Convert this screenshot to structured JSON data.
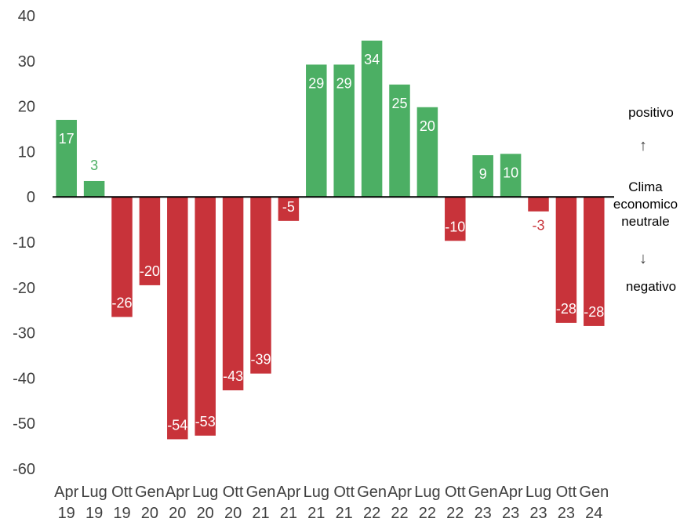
{
  "chart_data": {
    "type": "bar",
    "categories": [
      [
        "Apr",
        "19"
      ],
      [
        "Lug",
        "19"
      ],
      [
        "Ott",
        "19"
      ],
      [
        "Gen",
        "20"
      ],
      [
        "Apr",
        "20"
      ],
      [
        "Lug",
        "20"
      ],
      [
        "Ott",
        "20"
      ],
      [
        "Gen",
        "21"
      ],
      [
        "Apr",
        "21"
      ],
      [
        "Lug",
        "21"
      ],
      [
        "Ott",
        "21"
      ],
      [
        "Gen",
        "22"
      ],
      [
        "Apr",
        "22"
      ],
      [
        "Lug",
        "22"
      ],
      [
        "Ott",
        "22"
      ],
      [
        "Gen",
        "23"
      ],
      [
        "Apr",
        "23"
      ],
      [
        "Lug",
        "23"
      ],
      [
        "Ott",
        "23"
      ],
      [
        "Gen",
        "24"
      ]
    ],
    "values": [
      17,
      3.5,
      -26.5,
      -19.5,
      -53.5,
      -52.7,
      -42.7,
      -39,
      -5.3,
      29.2,
      29.2,
      34.5,
      24.8,
      19.8,
      -9.7,
      9.2,
      9.5,
      -3.2,
      -27.8,
      -28.5
    ],
    "data_labels": [
      "17",
      "3",
      "-26",
      "-20",
      "-54",
      "-53",
      "-43",
      "-39",
      "-5",
      "29",
      "29",
      "34",
      "25",
      "20",
      "-10",
      "9",
      "10",
      "-3",
      "-28",
      "-28"
    ],
    "ylim": [
      -60,
      40
    ],
    "yticks": [
      40,
      30,
      20,
      10,
      0,
      -10,
      -20,
      -30,
      -40,
      -50,
      -60
    ],
    "colors": {
      "positive": "#4caf64",
      "negative": "#c8333a",
      "axis": "#000000"
    },
    "grid": false,
    "legend": "none"
  },
  "side_labels": {
    "positive": "positivo",
    "neutral": [
      "Clima",
      "economico",
      "neutrale"
    ],
    "negative": "negativo",
    "arrow_up": "↑",
    "arrow_down": "↓"
  }
}
